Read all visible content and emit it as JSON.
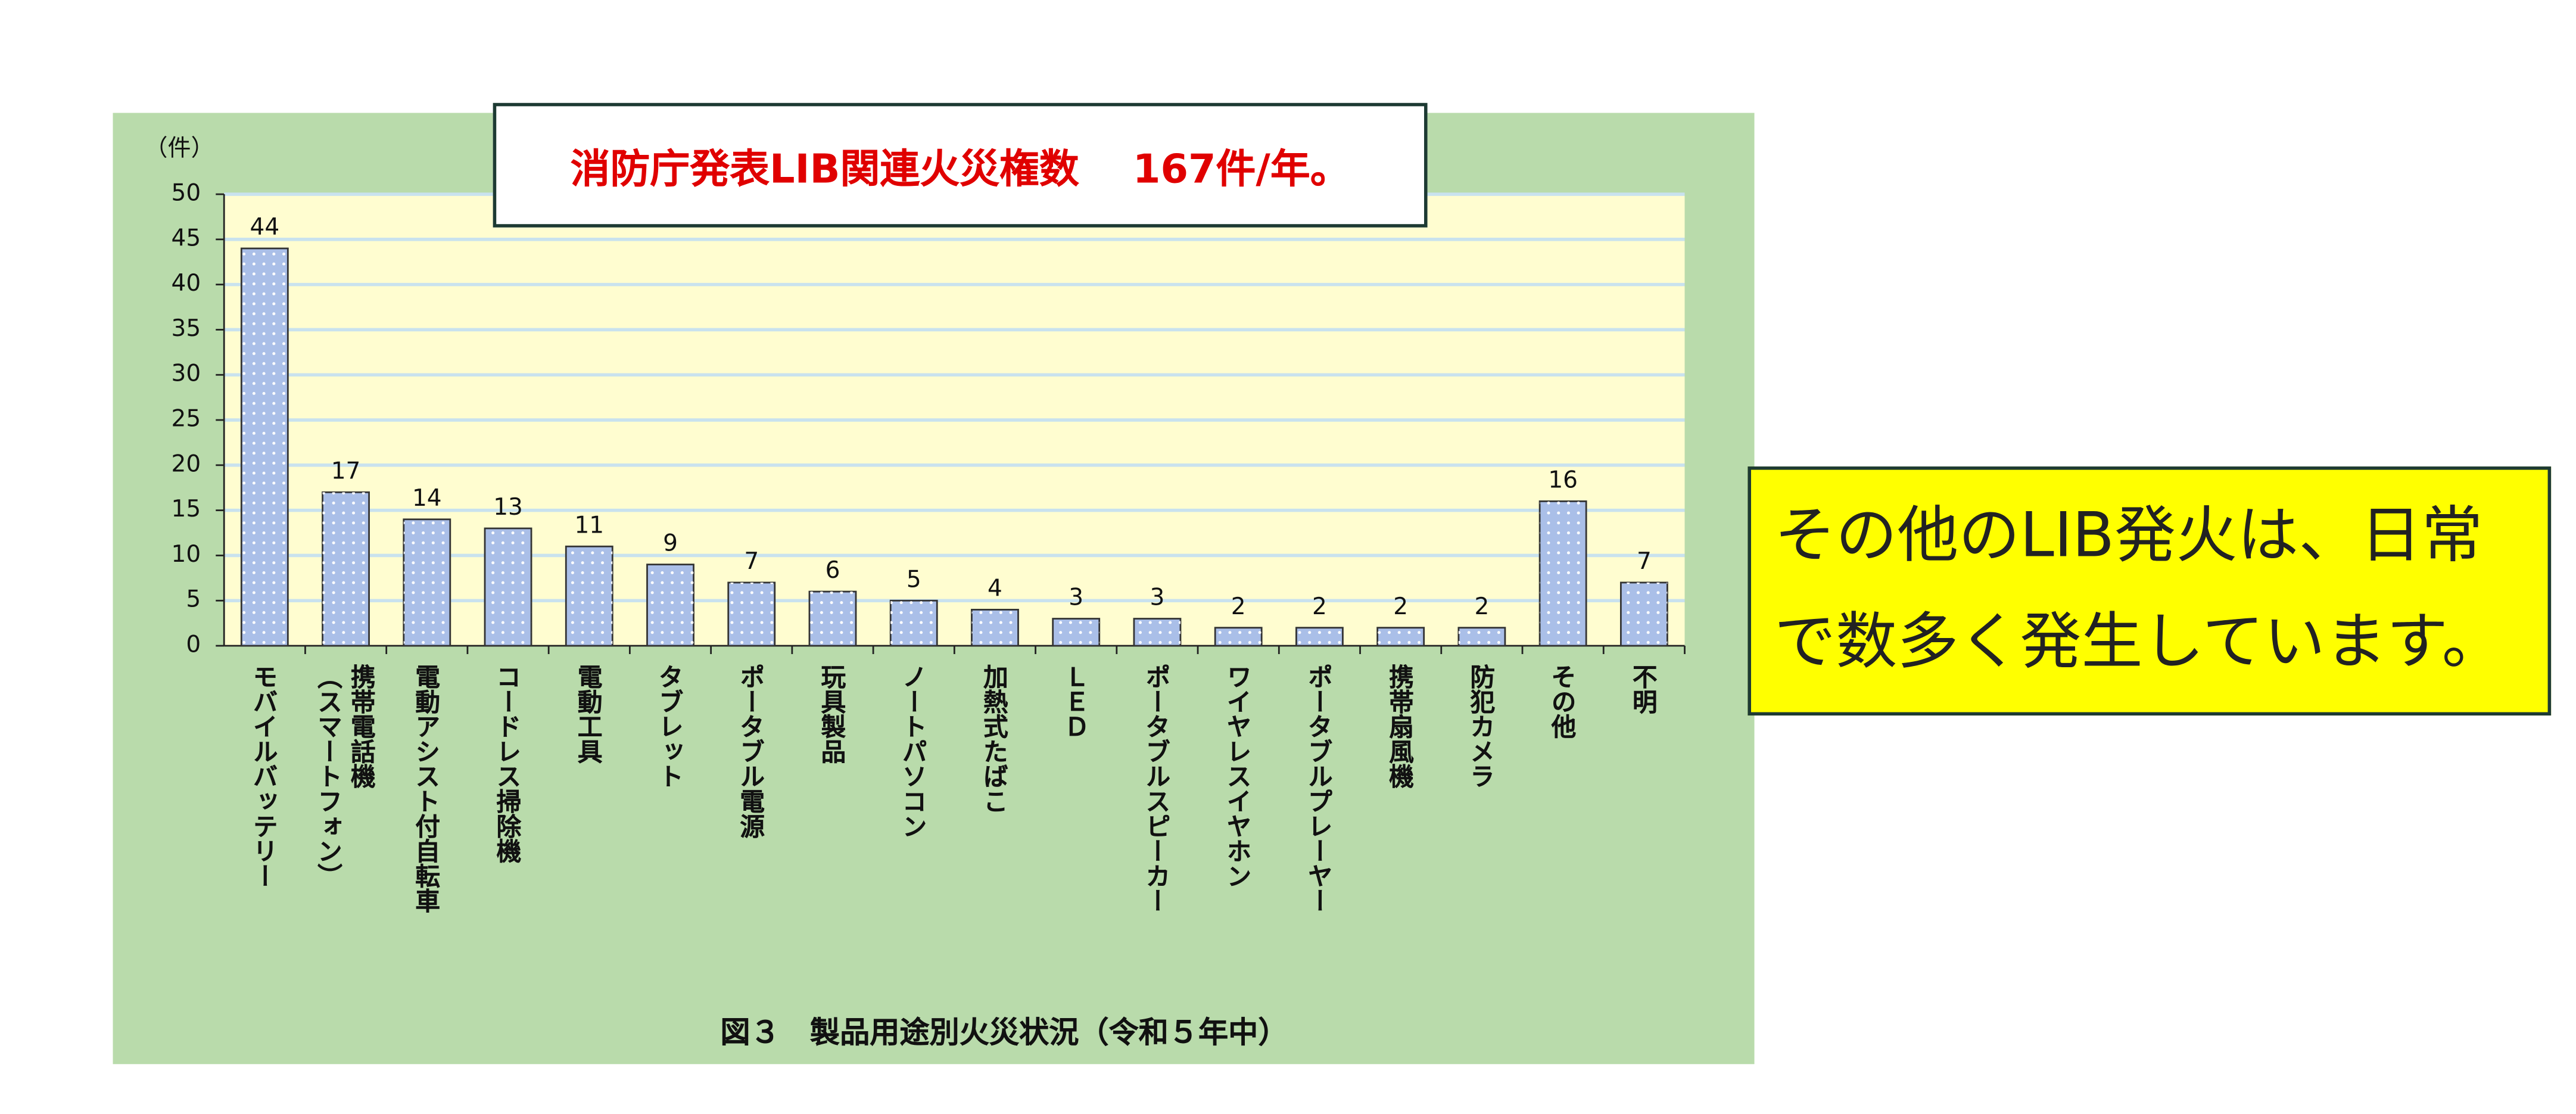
{
  "chart_data": {
    "type": "bar",
    "title": "消防庁発表LIB関連火災権数　 167件/年。",
    "caption": "図３　製品用途別火災状況（令和５年中）",
    "y_label": "（件）",
    "categories": [
      "モバイルバッテリー",
      "携帯電話機\n（スマートフォン）",
      "電動アシスト付自転車",
      "コードレス掃除機",
      "電動工具",
      "タブレット",
      "ポータブル電源",
      "玩具製品",
      "ノートパソコン",
      "加熱式たばこ",
      "ＬＥＤ",
      "ポータブルスピーカー",
      "ワイヤレスイヤホン",
      "ポータブルプレーヤー",
      "携帯扇風機",
      "防犯カメラ",
      "その他",
      "不明"
    ],
    "values": [
      44,
      17,
      14,
      13,
      11,
      9,
      7,
      6,
      5,
      4,
      3,
      3,
      2,
      2,
      2,
      2,
      16,
      7
    ],
    "color": "#aabfe8",
    "ylim": [
      0,
      50
    ],
    "yticks": [
      0,
      5,
      10,
      15,
      20,
      25,
      30,
      35,
      40,
      45,
      50
    ],
    "grid": true
  },
  "callout": {
    "lines": [
      "その他のLIB発火は、日常",
      "で数多く発生しています。"
    ]
  }
}
